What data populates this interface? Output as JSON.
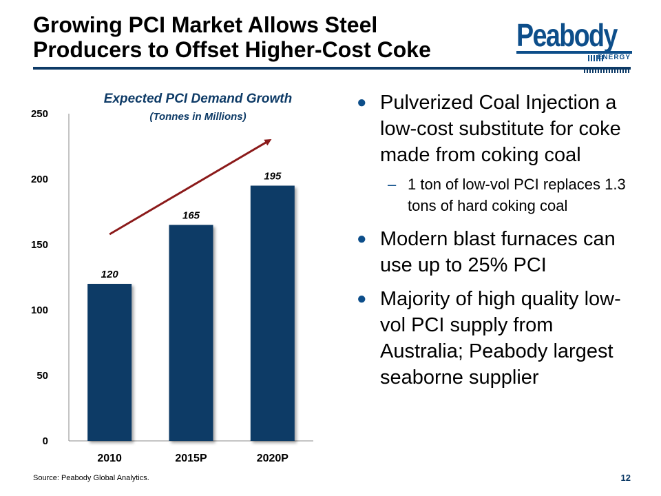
{
  "slide": {
    "title_line1": "Growing PCI Market Allows Steel",
    "title_line2": "Producers to Offset Higher-Cost Coke",
    "logo_word": "Peabody",
    "logo_sub": "ENERGY",
    "source": "Source:  Peabody Global Analytics.",
    "page_number": "12",
    "accent_color": "#0d3a66"
  },
  "bullets": [
    {
      "text": "Pulverized Coal Injection a low-cost substitute for coke made from coking coal",
      "sub": "1 ton of low-vol PCI replaces 1.3 tons of hard coking coal"
    },
    {
      "text": "Modern blast furnaces can use up to 25% PCI"
    },
    {
      "text": "Majority of high quality low-vol PCI supply from Australia; Peabody largest seaborne supplier"
    }
  ],
  "chart_data": {
    "type": "bar",
    "title": "Expected PCI Demand Growth",
    "subtitle": "(Tonnes in Millions)",
    "categories": [
      "2010",
      "2015P",
      "2020P"
    ],
    "values": [
      120,
      165,
      195
    ],
    "data_labels": [
      "120",
      "165",
      "195"
    ],
    "ylim": [
      0,
      250
    ],
    "yticks": [
      0,
      50,
      100,
      150,
      200,
      250
    ],
    "grid": false,
    "bar_color": "#0d3a66",
    "trend_arrow_color": "#8b1a1a",
    "annotation": "trend arrow from 2010 rising to 2020P"
  }
}
